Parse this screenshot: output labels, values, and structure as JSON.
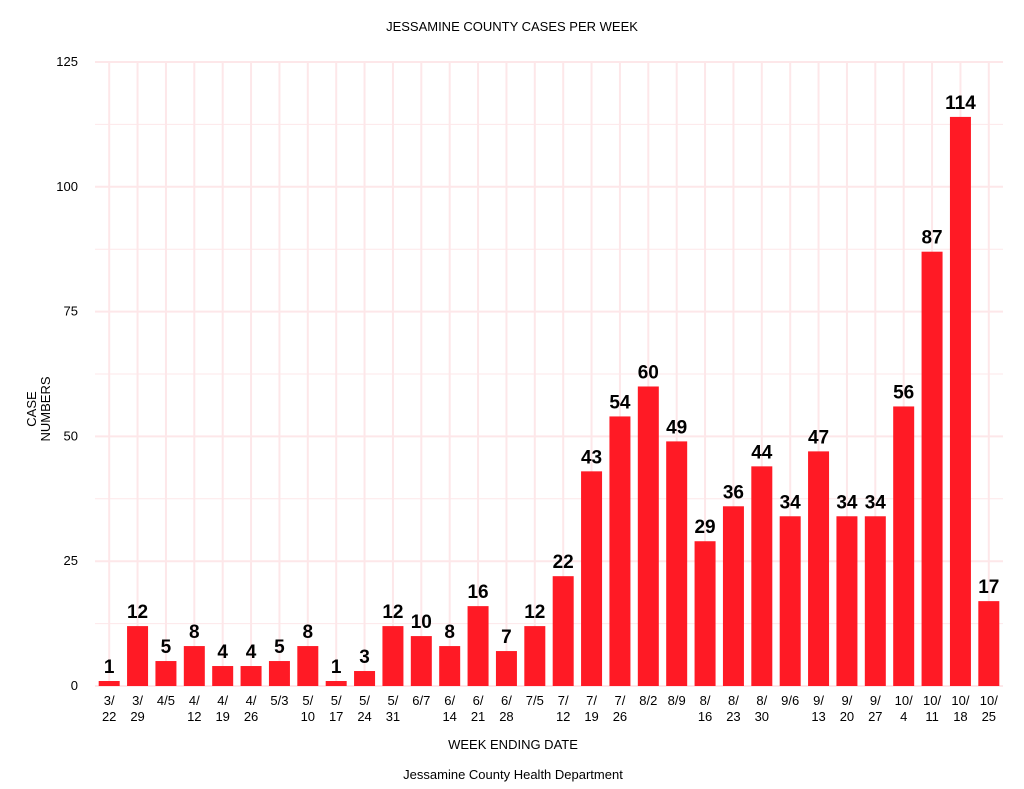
{
  "chart_data": {
    "type": "bar",
    "title": "JESSAMINE COUNTY CASES PER WEEK",
    "xlabel": "WEEK ENDING DATE",
    "ylabel_lines": [
      "CASE",
      "NUMBERS"
    ],
    "caption": "Jessamine County Health Department",
    "ylim": [
      0,
      125
    ],
    "yticks": [
      "0",
      "25",
      "50",
      "75",
      "100",
      "125"
    ],
    "ytick_values": [
      0,
      25,
      50,
      75,
      100,
      125
    ],
    "grid": true,
    "bar_color": "#ff1a25",
    "grid_color": "#fde7e9",
    "categories": [
      [
        "3/",
        "22"
      ],
      [
        "3/",
        "29"
      ],
      [
        "4/5"
      ],
      [
        "4/",
        "12"
      ],
      [
        "4/",
        "19"
      ],
      [
        "4/",
        "26"
      ],
      [
        "5/3"
      ],
      [
        "5/",
        "10"
      ],
      [
        "5/",
        "17"
      ],
      [
        "5/",
        "24"
      ],
      [
        "5/",
        "31"
      ],
      [
        "6/7"
      ],
      [
        "6/",
        "14"
      ],
      [
        "6/",
        "21"
      ],
      [
        "6/",
        "28"
      ],
      [
        "7/5"
      ],
      [
        "7/",
        "12"
      ],
      [
        "7/",
        "19"
      ],
      [
        "7/",
        "26"
      ],
      [
        "8/2"
      ],
      [
        "8/9"
      ],
      [
        "8/",
        "16"
      ],
      [
        "8/",
        "23"
      ],
      [
        "8/",
        "30"
      ],
      [
        "9/6"
      ],
      [
        "9/",
        "13"
      ],
      [
        "9/",
        "20"
      ],
      [
        "9/",
        "27"
      ],
      [
        "10/",
        "4"
      ],
      [
        "10/",
        "11"
      ],
      [
        "10/",
        "18"
      ],
      [
        "10/",
        "25"
      ]
    ],
    "values": [
      1,
      12,
      5,
      8,
      4,
      4,
      5,
      8,
      1,
      3,
      12,
      10,
      8,
      16,
      7,
      12,
      22,
      43,
      54,
      60,
      49,
      29,
      36,
      44,
      34,
      47,
      34,
      34,
      56,
      87,
      114,
      17
    ]
  }
}
